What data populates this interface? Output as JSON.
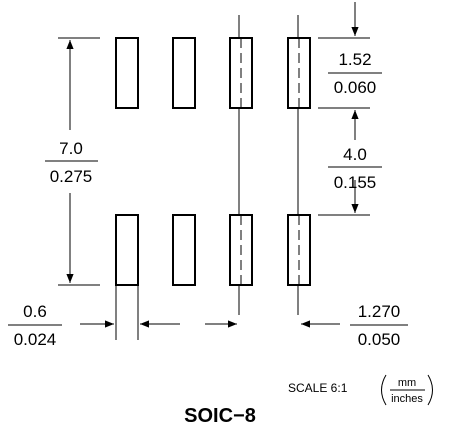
{
  "drawing": {
    "package": "SOIC−8",
    "scale_label": "SCALE 6:1",
    "units_top": "mm",
    "units_bottom": "inches",
    "pad_count": 8,
    "pad_rows": 2,
    "pads_per_row": 4
  },
  "dimensions": {
    "pad_span": {
      "mm": "7.0",
      "inches": "0.275"
    },
    "pad_length": {
      "mm": "1.52",
      "inches": "0.060"
    },
    "row_gap": {
      "mm": "4.0",
      "inches": "0.155"
    },
    "pad_width": {
      "mm": "0.6",
      "inches": "0.024"
    },
    "pitch": {
      "mm": "1.270",
      "inches": "0.050"
    }
  }
}
